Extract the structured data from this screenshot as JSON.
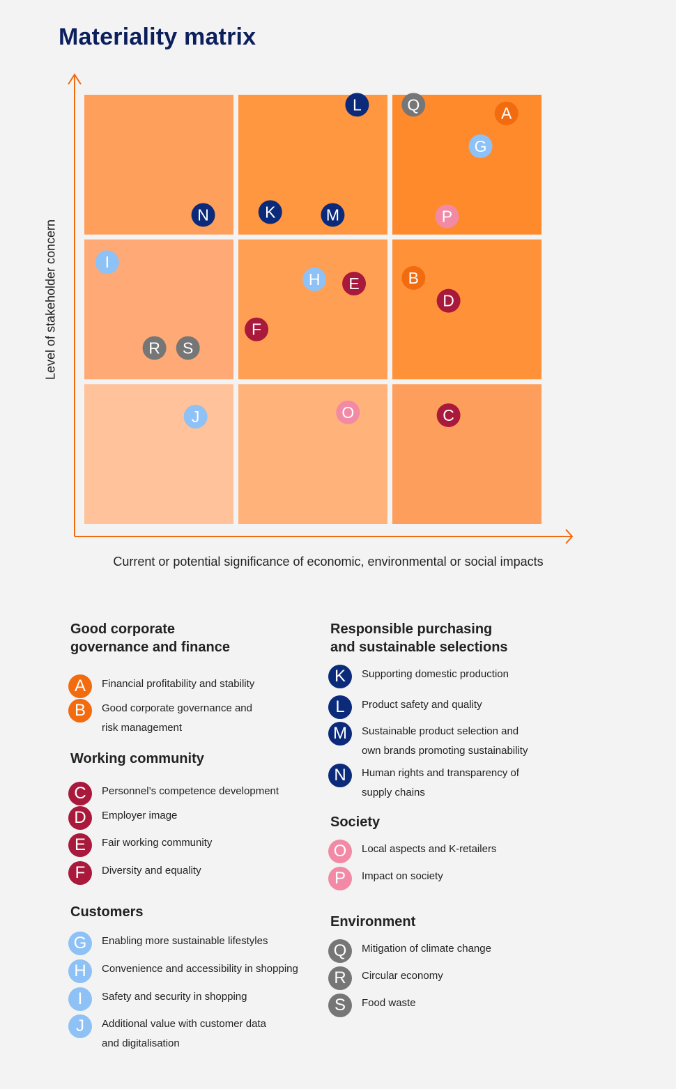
{
  "title": "Materiality matrix",
  "colors": {
    "governance": "#f26b0f",
    "working": "#a8193b",
    "customers": "#8ec1f5",
    "purchasing": "#0b2a7a",
    "society": "#f28aa5",
    "environment": "#767676",
    "axis": "#f06a10"
  },
  "chart_data": {
    "type": "scatter",
    "title": "Materiality matrix",
    "xlabel": "Current or potential significance of economic, environmental or social impacts",
    "ylabel": "Level of stakeholder concern",
    "xlim": [
      0,
      3
    ],
    "ylim": [
      0,
      3
    ],
    "grid": "3x3 cells",
    "cell_colors": [
      [
        "#ffc29a",
        "#ffb27a",
        "#fe9e5c"
      ],
      [
        "#ffaa76",
        "#ff9f54",
        "#ff9139"
      ],
      [
        "#ff9f5c",
        "#ff9640",
        "#ff8a2c"
      ]
    ],
    "points": [
      {
        "id": "A",
        "x": 2.77,
        "y": 2.87,
        "group": "governance"
      },
      {
        "id": "B",
        "x": 2.16,
        "y": 1.72,
        "group": "governance"
      },
      {
        "id": "C",
        "x": 2.39,
        "y": 0.76,
        "group": "working"
      },
      {
        "id": "D",
        "x": 2.39,
        "y": 1.56,
        "group": "working"
      },
      {
        "id": "E",
        "x": 1.77,
        "y": 1.68,
        "group": "working"
      },
      {
        "id": "F",
        "x": 1.13,
        "y": 1.36,
        "group": "working"
      },
      {
        "id": "G",
        "x": 2.6,
        "y": 2.64,
        "group": "customers"
      },
      {
        "id": "H",
        "x": 1.51,
        "y": 1.71,
        "group": "customers"
      },
      {
        "id": "I",
        "x": 0.15,
        "y": 1.83,
        "group": "customers"
      },
      {
        "id": "J",
        "x": 0.73,
        "y": 0.75,
        "group": "customers"
      },
      {
        "id": "K",
        "x": 1.22,
        "y": 2.18,
        "group": "purchasing"
      },
      {
        "id": "L",
        "x": 1.79,
        "y": 2.93,
        "group": "purchasing"
      },
      {
        "id": "M",
        "x": 1.63,
        "y": 2.16,
        "group": "purchasing"
      },
      {
        "id": "N",
        "x": 0.78,
        "y": 2.16,
        "group": "purchasing"
      },
      {
        "id": "O",
        "x": 1.73,
        "y": 0.78,
        "group": "society"
      },
      {
        "id": "P",
        "x": 2.38,
        "y": 2.15,
        "group": "society"
      },
      {
        "id": "Q",
        "x": 2.16,
        "y": 2.93,
        "group": "environment"
      },
      {
        "id": "R",
        "x": 0.46,
        "y": 1.23,
        "group": "environment"
      },
      {
        "id": "S",
        "x": 0.68,
        "y": 1.23,
        "group": "environment"
      }
    ]
  },
  "legend": {
    "left": [
      {
        "title": "Good corporate\ngovernance and finance",
        "group": "governance",
        "items": [
          {
            "letter": "A",
            "text": "Financial profitability and stability"
          },
          {
            "letter": "B",
            "text": "Good corporate governance and\nrisk management"
          }
        ]
      },
      {
        "title": "Working community",
        "group": "working",
        "items": [
          {
            "letter": "C",
            "text": "Personnel’s competence development"
          },
          {
            "letter": "D",
            "text": "Employer image"
          },
          {
            "letter": "E",
            "text": "Fair working community"
          },
          {
            "letter": "F",
            "text": "Diversity and equality"
          }
        ]
      },
      {
        "title": "Customers",
        "group": "customers",
        "items": [
          {
            "letter": "G",
            "text": "Enabling more sustainable lifestyles"
          },
          {
            "letter": "H",
            "text": "Convenience and accessibility in shopping"
          },
          {
            "letter": "I",
            "text": "Safety and security in shopping"
          },
          {
            "letter": "J",
            "text": "Additional value with customer data\nand digitalisation"
          }
        ]
      }
    ],
    "right": [
      {
        "title": "Responsible purchasing\nand sustainable selections",
        "group": "purchasing",
        "items": [
          {
            "letter": "K",
            "text": "Supporting domestic production"
          },
          {
            "letter": "L",
            "text": "Product safety and quality"
          },
          {
            "letter": "M",
            "text": "Sustainable product selection and\nown brands promoting sustainability"
          },
          {
            "letter": "N",
            "text": "Human rights and transparency of\nsupply chains"
          }
        ]
      },
      {
        "title": "Society",
        "group": "society",
        "items": [
          {
            "letter": "O",
            "text": "Local aspects and K-retailers"
          },
          {
            "letter": "P",
            "text": "Impact on society"
          }
        ]
      },
      {
        "title": "Environment",
        "group": "environment",
        "items": [
          {
            "letter": "Q",
            "text": "Mitigation of climate change"
          },
          {
            "letter": "R",
            "text": "Circular economy"
          },
          {
            "letter": "S",
            "text": "Food waste"
          }
        ]
      }
    ]
  }
}
